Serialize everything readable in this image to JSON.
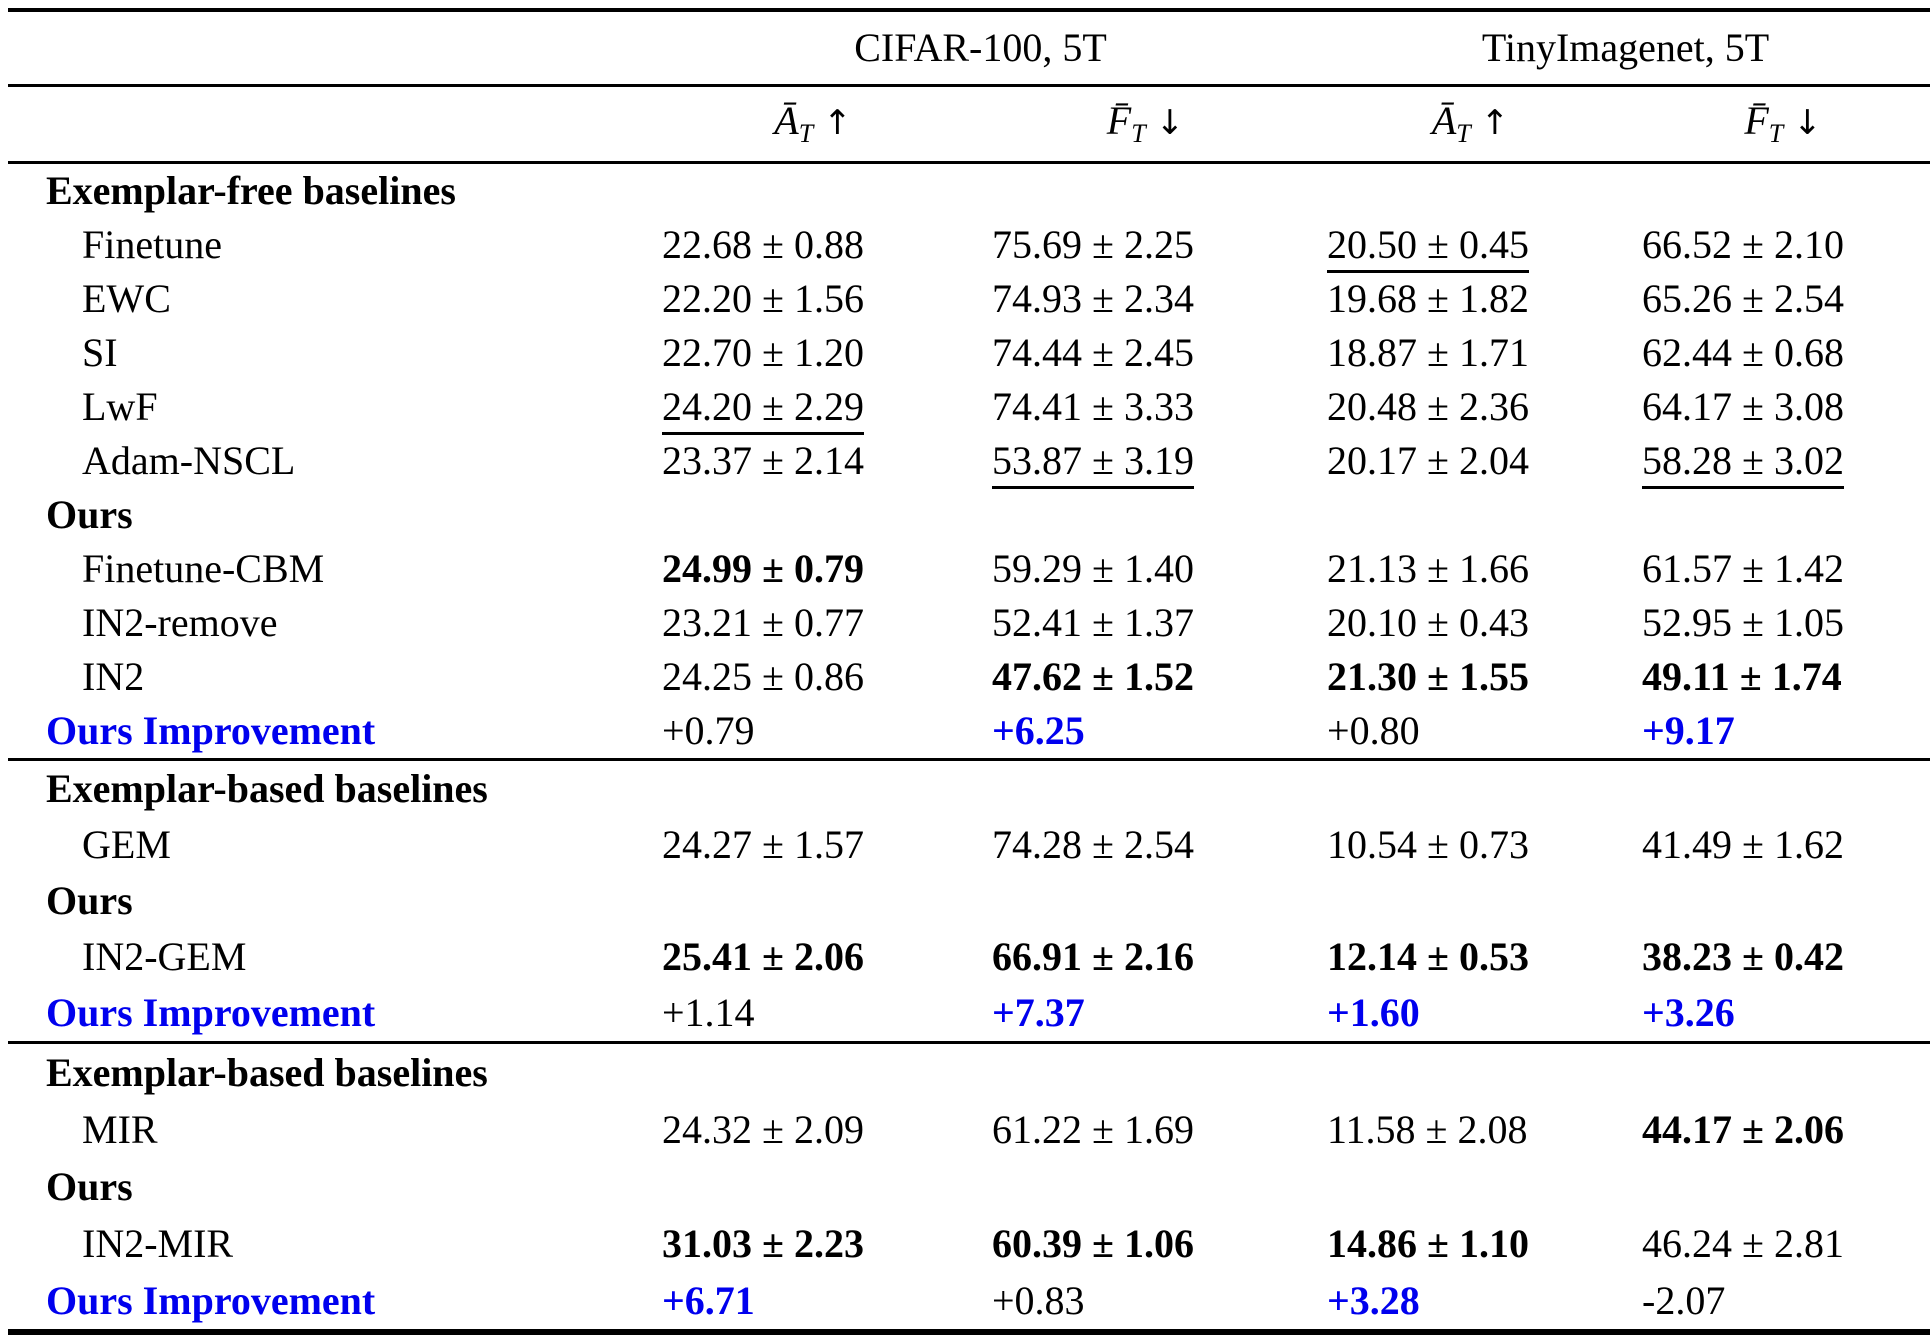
{
  "page": {
    "background": "#ffffff",
    "text_color": "#000000",
    "accent_blue": "#0000ee"
  },
  "table": {
    "group_headers": [
      {
        "label": "CIFAR-100, 5T"
      },
      {
        "label": "TinyImagenet, 5T"
      }
    ],
    "metric_headers": [
      {
        "letter": "Ā",
        "sub": "T",
        "arrow": "↑"
      },
      {
        "letter": "F̄",
        "sub": "T",
        "arrow": "↓"
      },
      {
        "letter": "Ā",
        "sub": "T",
        "arrow": "↑"
      },
      {
        "letter": "F̄",
        "sub": "T",
        "arrow": "↓"
      }
    ],
    "sections": [
      {
        "rows": [
          {
            "type": "group",
            "label": "Exemplar-free baselines",
            "cells": null
          },
          {
            "type": "method",
            "label": "Finetune",
            "cells": [
              {
                "text": "22.68 ± 0.88"
              },
              {
                "text": "75.69 ± 2.25"
              },
              {
                "text": "20.50 ± 0.45",
                "underline": true
              },
              {
                "text": "66.52 ± 2.10"
              }
            ]
          },
          {
            "type": "method",
            "label": "EWC",
            "cells": [
              {
                "text": "22.20 ± 1.56"
              },
              {
                "text": "74.93 ± 2.34"
              },
              {
                "text": "19.68 ± 1.82"
              },
              {
                "text": "65.26 ± 2.54"
              }
            ]
          },
          {
            "type": "method",
            "label": "SI",
            "cells": [
              {
                "text": "22.70 ± 1.20"
              },
              {
                "text": "74.44 ± 2.45"
              },
              {
                "text": "18.87 ± 1.71"
              },
              {
                "text": "62.44 ± 0.68"
              }
            ]
          },
          {
            "type": "method",
            "label": "LwF",
            "cells": [
              {
                "text": "24.20 ± 2.29",
                "underline": true
              },
              {
                "text": "74.41 ± 3.33"
              },
              {
                "text": "20.48 ± 2.36"
              },
              {
                "text": "64.17 ± 3.08"
              }
            ]
          },
          {
            "type": "method",
            "label": "Adam-NSCL",
            "cells": [
              {
                "text": "23.37 ± 2.14"
              },
              {
                "text": "53.87 ± 3.19",
                "underline": true
              },
              {
                "text": "20.17 ± 2.04"
              },
              {
                "text": "58.28 ± 3.02",
                "underline": true
              }
            ]
          },
          {
            "type": "group",
            "label": "Ours",
            "cells": null
          },
          {
            "type": "method",
            "label": "Finetune-CBM",
            "cells": [
              {
                "text": "24.99 ± 0.79",
                "bold": true
              },
              {
                "text": "59.29 ± 1.40"
              },
              {
                "text": "21.13 ± 1.66"
              },
              {
                "text": "61.57 ± 1.42"
              }
            ]
          },
          {
            "type": "method",
            "label": "IN2-remove",
            "cells": [
              {
                "text": "23.21 ± 0.77"
              },
              {
                "text": "52.41 ± 1.37"
              },
              {
                "text": "20.10 ± 0.43"
              },
              {
                "text": "52.95 ± 1.05"
              }
            ]
          },
          {
            "type": "method",
            "label": "IN2",
            "cells": [
              {
                "text": "24.25 ± 0.86"
              },
              {
                "text": "47.62 ± 1.52",
                "bold": true
              },
              {
                "text": "21.30 ± 1.55",
                "bold": true
              },
              {
                "text": "49.11 ± 1.74",
                "bold": true
              }
            ]
          },
          {
            "type": "improvement",
            "label": "Ours Improvement",
            "cells": [
              {
                "text": "+0.79"
              },
              {
                "text": "+6.25",
                "bold": true,
                "blue": true
              },
              {
                "text": "+0.80"
              },
              {
                "text": "+9.17",
                "bold": true,
                "blue": true
              }
            ]
          }
        ]
      },
      {
        "rows": [
          {
            "type": "group",
            "label": "Exemplar-based baselines",
            "cells": null
          },
          {
            "type": "method",
            "label": "GEM",
            "cells": [
              {
                "text": "24.27 ± 1.57"
              },
              {
                "text": "74.28 ± 2.54"
              },
              {
                "text": "10.54 ± 0.73"
              },
              {
                "text": "41.49 ± 1.62"
              }
            ]
          },
          {
            "type": "group",
            "label": "Ours",
            "cells": null
          },
          {
            "type": "method",
            "label": "IN2-GEM",
            "cells": [
              {
                "text": "25.41 ± 2.06",
                "bold": true
              },
              {
                "text": "66.91 ± 2.16",
                "bold": true
              },
              {
                "text": "12.14 ± 0.53",
                "bold": true
              },
              {
                "text": "38.23 ± 0.42",
                "bold": true
              }
            ]
          },
          {
            "type": "improvement",
            "label": "Ours Improvement",
            "cells": [
              {
                "text": "+1.14"
              },
              {
                "text": "+7.37",
                "bold": true,
                "blue": true
              },
              {
                "text": "+1.60",
                "bold": true,
                "blue": true
              },
              {
                "text": "+3.26",
                "bold": true,
                "blue": true
              }
            ]
          }
        ]
      },
      {
        "rows": [
          {
            "type": "group",
            "label": "Exemplar-based baselines",
            "cells": null
          },
          {
            "type": "method",
            "label": "MIR",
            "cells": [
              {
                "text": "24.32 ± 2.09"
              },
              {
                "text": "61.22 ± 1.69"
              },
              {
                "text": "11.58 ± 2.08"
              },
              {
                "text": "44.17 ± 2.06",
                "bold": true
              }
            ]
          },
          {
            "type": "group",
            "label": "Ours",
            "cells": null
          },
          {
            "type": "method",
            "label": "IN2-MIR",
            "cells": [
              {
                "text": "31.03 ± 2.23",
                "bold": true
              },
              {
                "text": "60.39 ± 1.06",
                "bold": true
              },
              {
                "text": "14.86 ± 1.10",
                "bold": true
              },
              {
                "text": "46.24 ± 2.81"
              }
            ]
          },
          {
            "type": "improvement",
            "label": "Ours Improvement",
            "cells": [
              {
                "text": "+6.71",
                "bold": true,
                "blue": true
              },
              {
                "text": "+0.83"
              },
              {
                "text": "+3.28",
                "bold": true,
                "blue": true
              },
              {
                "text": "-2.07"
              }
            ]
          }
        ]
      }
    ]
  }
}
